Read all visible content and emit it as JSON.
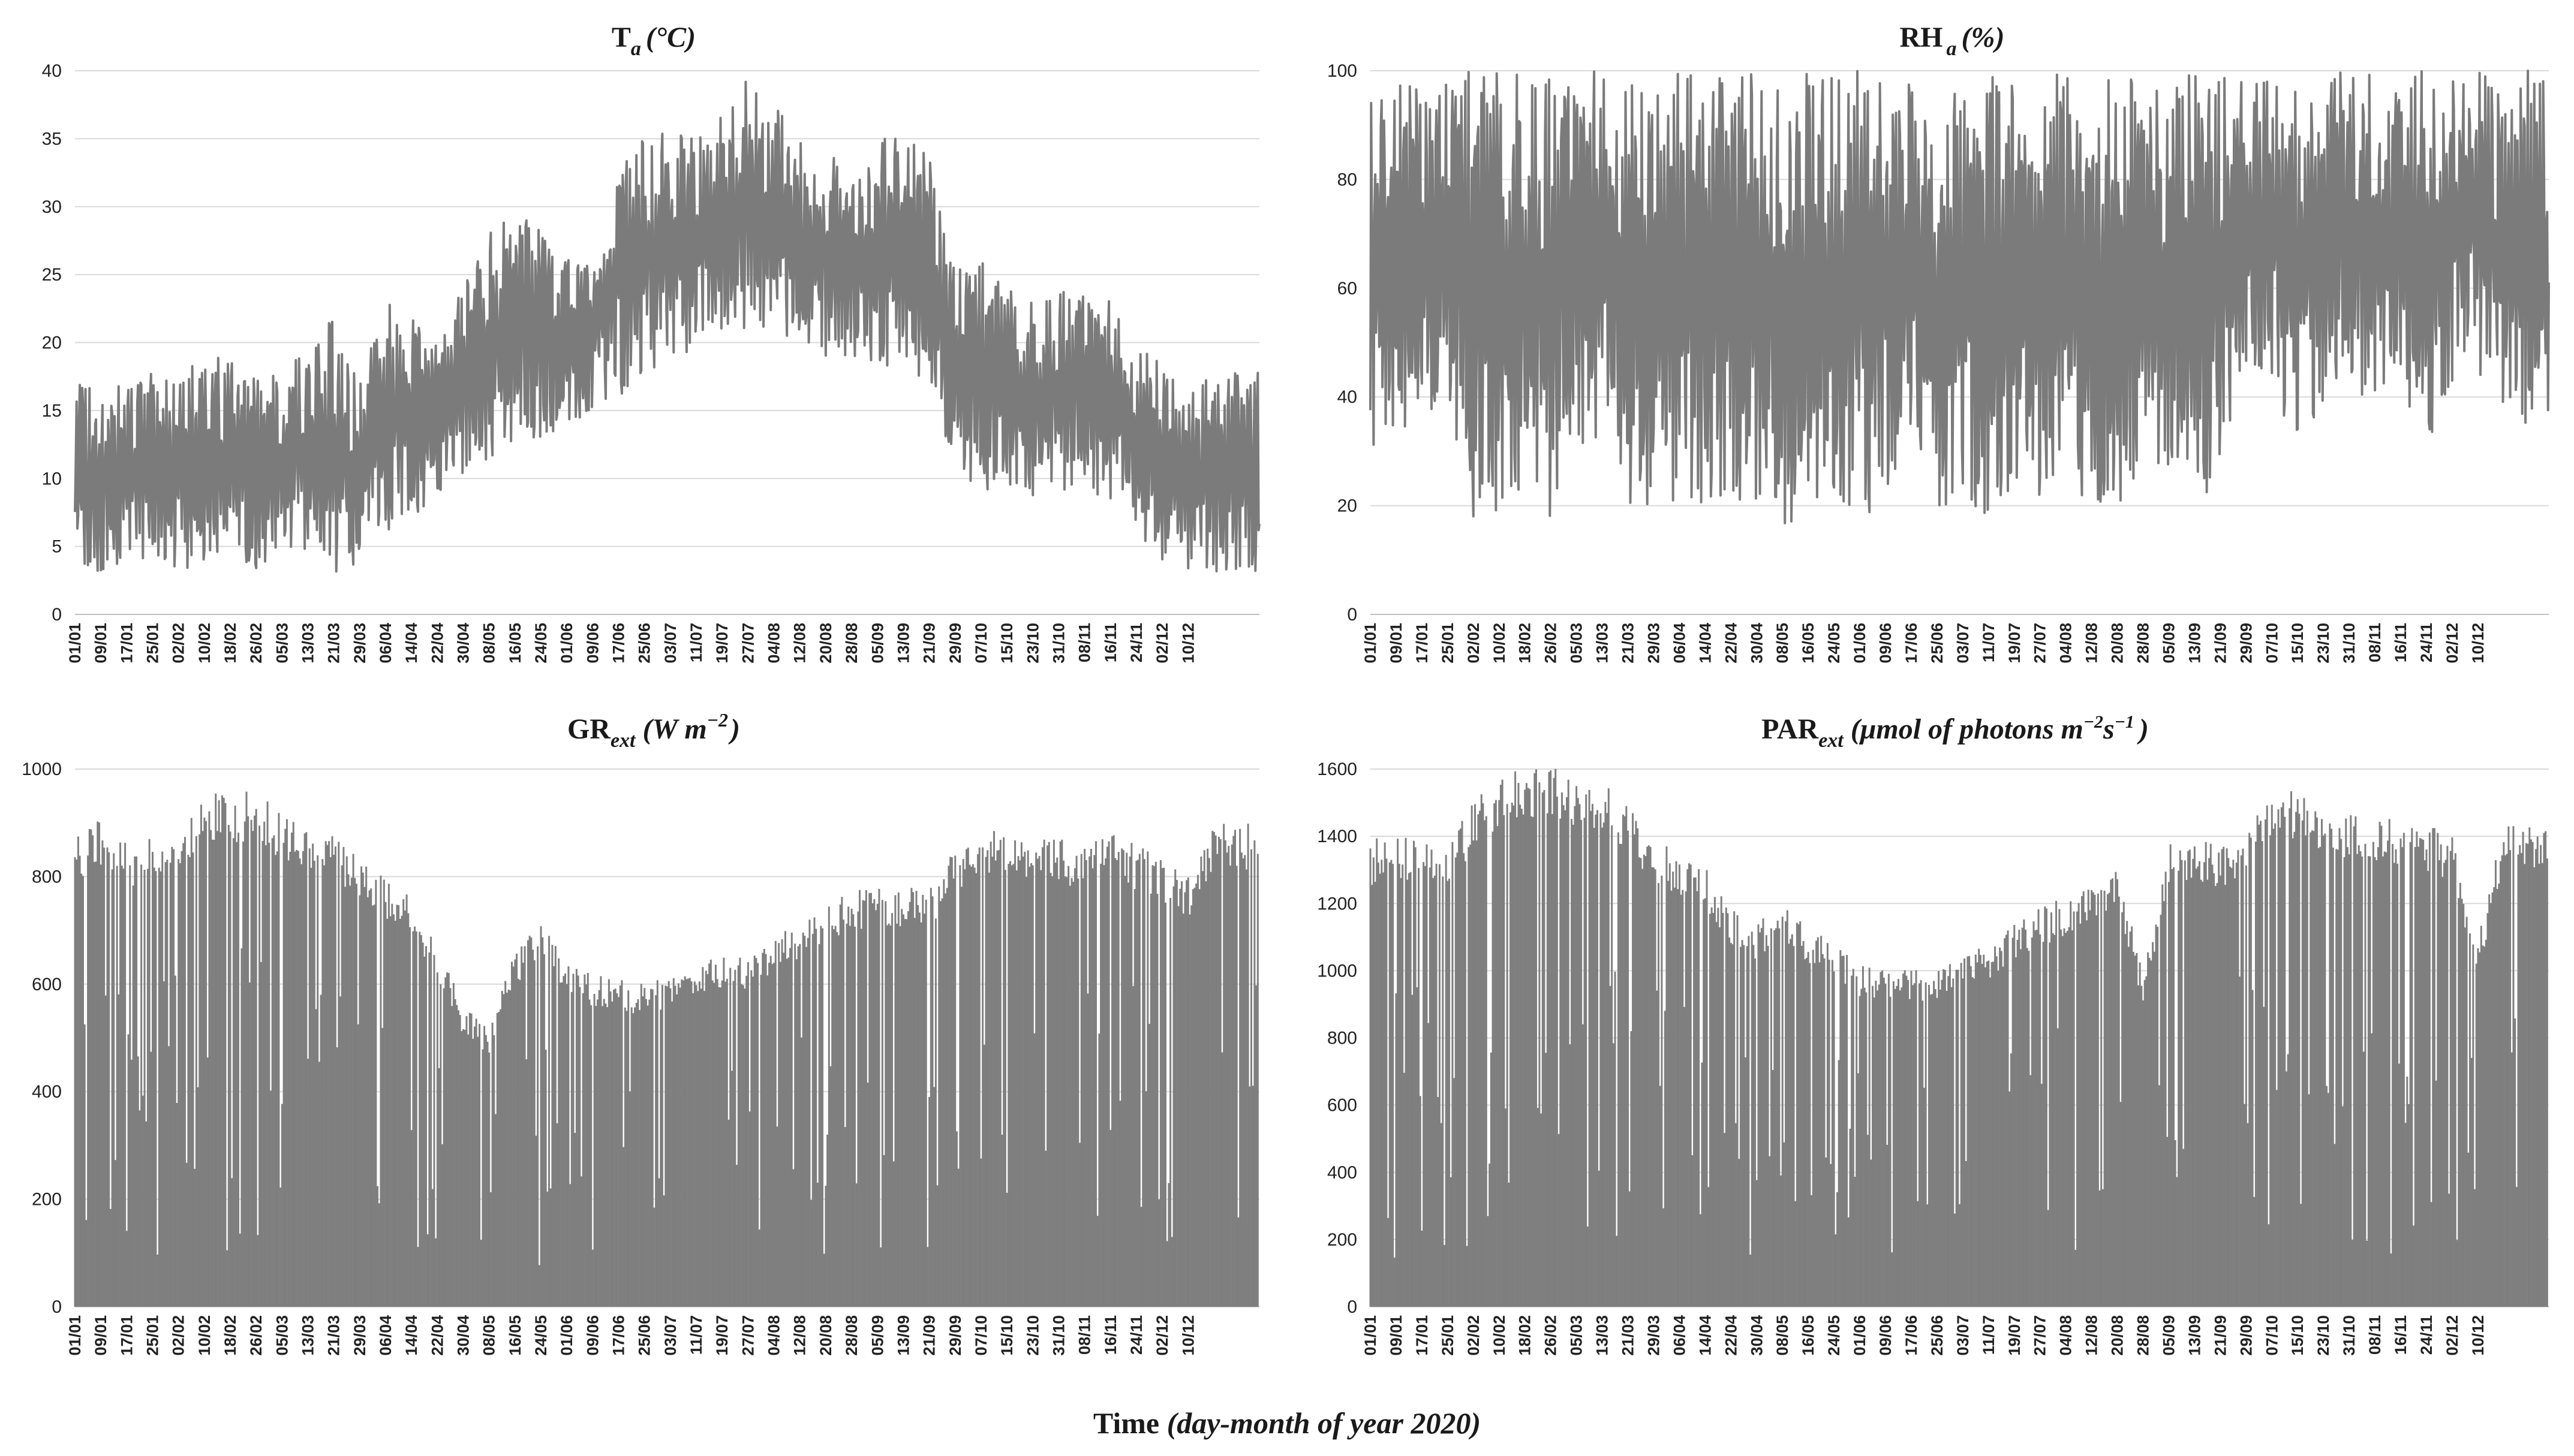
{
  "figure": {
    "x_axis_label": {
      "main": "Time",
      "detail": "(day-month of year 2020)"
    }
  },
  "chart_data": [
    {
      "id": "ta",
      "type": "line",
      "title": {
        "base": "T",
        "sub": "a",
        "unit": "(°C)"
      },
      "ylim": [
        0,
        40
      ],
      "yticks": [
        0,
        5,
        10,
        15,
        20,
        25,
        30,
        35,
        40
      ],
      "grid": true,
      "x_tick_labels": [
        "01/01",
        "09/01",
        "17/01",
        "25/01",
        "02/02",
        "10/02",
        "18/02",
        "26/02",
        "05/03",
        "13/03",
        "21/03",
        "29/03",
        "06/04",
        "14/04",
        "22/04",
        "30/04",
        "08/05",
        "16/05",
        "24/05",
        "01/06",
        "09/06",
        "17/06",
        "25/06",
        "03/07",
        "11/07",
        "19/07",
        "27/07",
        "04/08",
        "12/08",
        "20/08",
        "28/08",
        "05/09",
        "13/09",
        "21/09",
        "29/09",
        "07/10",
        "15/10",
        "23/10",
        "31/10",
        "08/11",
        "16/11",
        "24/11",
        "02/12",
        "10/12"
      ],
      "series": [
        {
          "days": [
            0,
            8,
            16,
            24,
            32,
            40,
            48,
            56,
            64,
            72,
            80,
            88,
            96,
            104,
            112,
            120,
            128,
            136,
            144,
            152,
            160,
            168,
            176,
            184,
            192,
            200,
            208,
            216,
            224,
            232,
            240,
            248,
            256,
            264,
            272,
            280,
            288,
            296,
            304,
            312,
            320,
            328,
            336,
            344,
            352
          ],
          "min": [
            2,
            3,
            4,
            4,
            3,
            4,
            4,
            3,
            5,
            4,
            3,
            3,
            6,
            7,
            9,
            10,
            11,
            12,
            13,
            14,
            15,
            16,
            18,
            18,
            19,
            20,
            21,
            21,
            20,
            19,
            19,
            18,
            18,
            16,
            11,
            9,
            9,
            8,
            9,
            9,
            8,
            6,
            4,
            3,
            3
          ],
          "max": [
            17,
            17,
            17,
            18,
            18,
            20,
            19,
            18,
            18,
            20,
            22,
            17,
            23,
            22,
            20,
            25,
            28,
            30,
            29,
            27,
            27,
            34,
            35,
            36,
            35,
            37,
            40,
            38,
            35,
            34,
            33,
            35,
            36,
            34,
            26,
            26,
            24,
            23,
            24,
            24,
            23,
            20,
            19,
            16,
            18
          ]
        }
      ]
    },
    {
      "id": "rh",
      "type": "line",
      "title": {
        "base": "RH",
        "sub": "a",
        "unit": "(%)"
      },
      "ylim": [
        0,
        100
      ],
      "yticks": [
        0,
        20,
        40,
        60,
        80,
        100
      ],
      "grid": true,
      "x_tick_labels": [
        "01/01",
        "09/01",
        "17/01",
        "25/01",
        "02/02",
        "10/02",
        "18/02",
        "26/02",
        "05/03",
        "13/03",
        "21/03",
        "29/03",
        "06/04",
        "14/04",
        "22/04",
        "30/04",
        "08/05",
        "16/05",
        "24/05",
        "01/06",
        "09/06",
        "17/06",
        "25/06",
        "03/07",
        "11/07",
        "19/07",
        "27/07",
        "04/08",
        "12/08",
        "20/08",
        "28/08",
        "05/09",
        "13/09",
        "21/09",
        "29/09",
        "07/10",
        "15/10",
        "23/10",
        "31/10",
        "08/11",
        "16/11",
        "24/11",
        "02/12",
        "10/12"
      ],
      "series": [
        {
          "days": [
            0,
            8,
            16,
            24,
            32,
            40,
            48,
            56,
            64,
            72,
            80,
            88,
            96,
            104,
            112,
            120,
            128,
            136,
            144,
            152,
            160,
            168,
            176,
            184,
            192,
            200,
            208,
            216,
            224,
            232,
            240,
            248,
            256,
            264,
            272,
            280,
            288,
            296,
            304,
            312,
            320,
            328,
            336,
            344,
            352
          ],
          "min": [
            30,
            30,
            35,
            40,
            17,
            15,
            20,
            17,
            30,
            30,
            20,
            20,
            18,
            20,
            20,
            20,
            15,
            18,
            16,
            18,
            20,
            35,
            20,
            20,
            17,
            20,
            22,
            22,
            18,
            20,
            25,
            22,
            20,
            25,
            40,
            40,
            28,
            38,
            40,
            40,
            42,
            30,
            42,
            45,
            35
          ],
          "max": [
            95,
            100,
            98,
            100,
            100,
            100,
            100,
            100,
            100,
            100,
            100,
            98,
            100,
            100,
            100,
            100,
            100,
            100,
            100,
            100,
            100,
            98,
            90,
            100,
            100,
            100,
            100,
            100,
            100,
            100,
            100,
            100,
            100,
            100,
            100,
            100,
            100,
            100,
            100,
            100,
            100,
            100,
            100,
            100,
            100
          ]
        }
      ]
    },
    {
      "id": "gr",
      "type": "bar",
      "title": {
        "base": "GR",
        "sub": "ext",
        "unit_prefix": "(W m",
        "unit_sup": "−2",
        "unit_suffix": ")"
      },
      "ylim": [
        0,
        1000
      ],
      "yticks": [
        0,
        200,
        400,
        600,
        800,
        1000
      ],
      "grid": true,
      "x_tick_labels": [
        "01/01",
        "09/01",
        "17/01",
        "25/01",
        "02/02",
        "10/02",
        "18/02",
        "26/02",
        "05/03",
        "13/03",
        "21/03",
        "29/03",
        "06/04",
        "14/04",
        "22/04",
        "30/04",
        "08/05",
        "16/05",
        "24/05",
        "01/06",
        "09/06",
        "17/06",
        "25/06",
        "03/07",
        "11/07",
        "19/07",
        "27/07",
        "04/08",
        "12/08",
        "20/08",
        "28/08",
        "05/09",
        "13/09",
        "21/09",
        "29/09",
        "07/10",
        "15/10",
        "23/10",
        "31/10",
        "08/11",
        "16/11",
        "24/11",
        "02/12",
        "10/12"
      ],
      "series": [
        {
          "days": [
            0,
            8,
            16,
            24,
            32,
            40,
            48,
            56,
            64,
            72,
            80,
            88,
            96,
            104,
            112,
            120,
            128,
            136,
            144,
            152,
            160,
            168,
            176,
            184,
            192,
            200,
            208,
            216,
            224,
            232,
            240,
            248,
            256,
            264,
            272,
            280,
            288,
            296,
            304,
            312,
            320,
            328,
            336,
            344,
            352
          ],
          "max": [
            870,
            910,
            860,
            880,
            890,
            960,
            950,
            965,
            920,
            900,
            880,
            840,
            800,
            760,
            680,
            560,
            520,
            660,
            720,
            650,
            620,
            610,
            600,
            615,
            640,
            660,
            650,
            690,
            720,
            750,
            770,
            790,
            780,
            780,
            850,
            890,
            900,
            880,
            870,
            860,
            880,
            860,
            830,
            800,
            900
          ]
        }
      ]
    },
    {
      "id": "par",
      "type": "bar",
      "title": {
        "base": "PAR",
        "sub": "ext",
        "unit_prefix": "(μmol of photons m",
        "unit_sup": "−2",
        "unit_mid": "s",
        "unit_sup2": "−1",
        "unit_suffix": ")"
      },
      "ylim": [
        0,
        1600
      ],
      "yticks": [
        0,
        200,
        400,
        600,
        800,
        1000,
        1200,
        1400,
        1600
      ],
      "grid": true,
      "x_tick_labels": [
        "01/01",
        "09/01",
        "17/01",
        "25/01",
        "02/02",
        "10/02",
        "18/02",
        "26/02",
        "05/03",
        "13/03",
        "21/03",
        "29/03",
        "06/04",
        "14/04",
        "22/04",
        "30/04",
        "08/05",
        "16/05",
        "24/05",
        "01/06",
        "09/06",
        "17/06",
        "25/06",
        "03/07",
        "11/07",
        "19/07",
        "27/07",
        "04/08",
        "12/08",
        "20/08",
        "28/08",
        "05/09",
        "13/09",
        "21/09",
        "29/09",
        "07/10",
        "15/10",
        "23/10",
        "31/10",
        "08/11",
        "16/11",
        "24/11",
        "02/12",
        "10/12"
      ],
      "series": [
        {
          "days": [
            0,
            8,
            16,
            24,
            32,
            40,
            48,
            56,
            64,
            72,
            80,
            88,
            96,
            104,
            112,
            120,
            128,
            136,
            144,
            152,
            160,
            168,
            176,
            184,
            192,
            200,
            208,
            216,
            224,
            232,
            240,
            248,
            256,
            264,
            272,
            280,
            288,
            296,
            304,
            312,
            320,
            328,
            336,
            344,
            352
          ],
          "max": [
            1390,
            1410,
            1380,
            1390,
            1500,
            1580,
            1610,
            1620,
            1560,
            1560,
            1500,
            1400,
            1340,
            1310,
            1200,
            1140,
            1220,
            1120,
            1100,
            1020,
            1000,
            1010,
            1000,
            1050,
            1080,
            1150,
            1190,
            1220,
            1270,
            1320,
            1000,
            1380,
            1400,
            1380,
            1420,
            1550,
            1530,
            1500,
            1480,
            1450,
            1460,
            1440,
            1400,
            1100,
            1440
          ]
        }
      ]
    }
  ]
}
